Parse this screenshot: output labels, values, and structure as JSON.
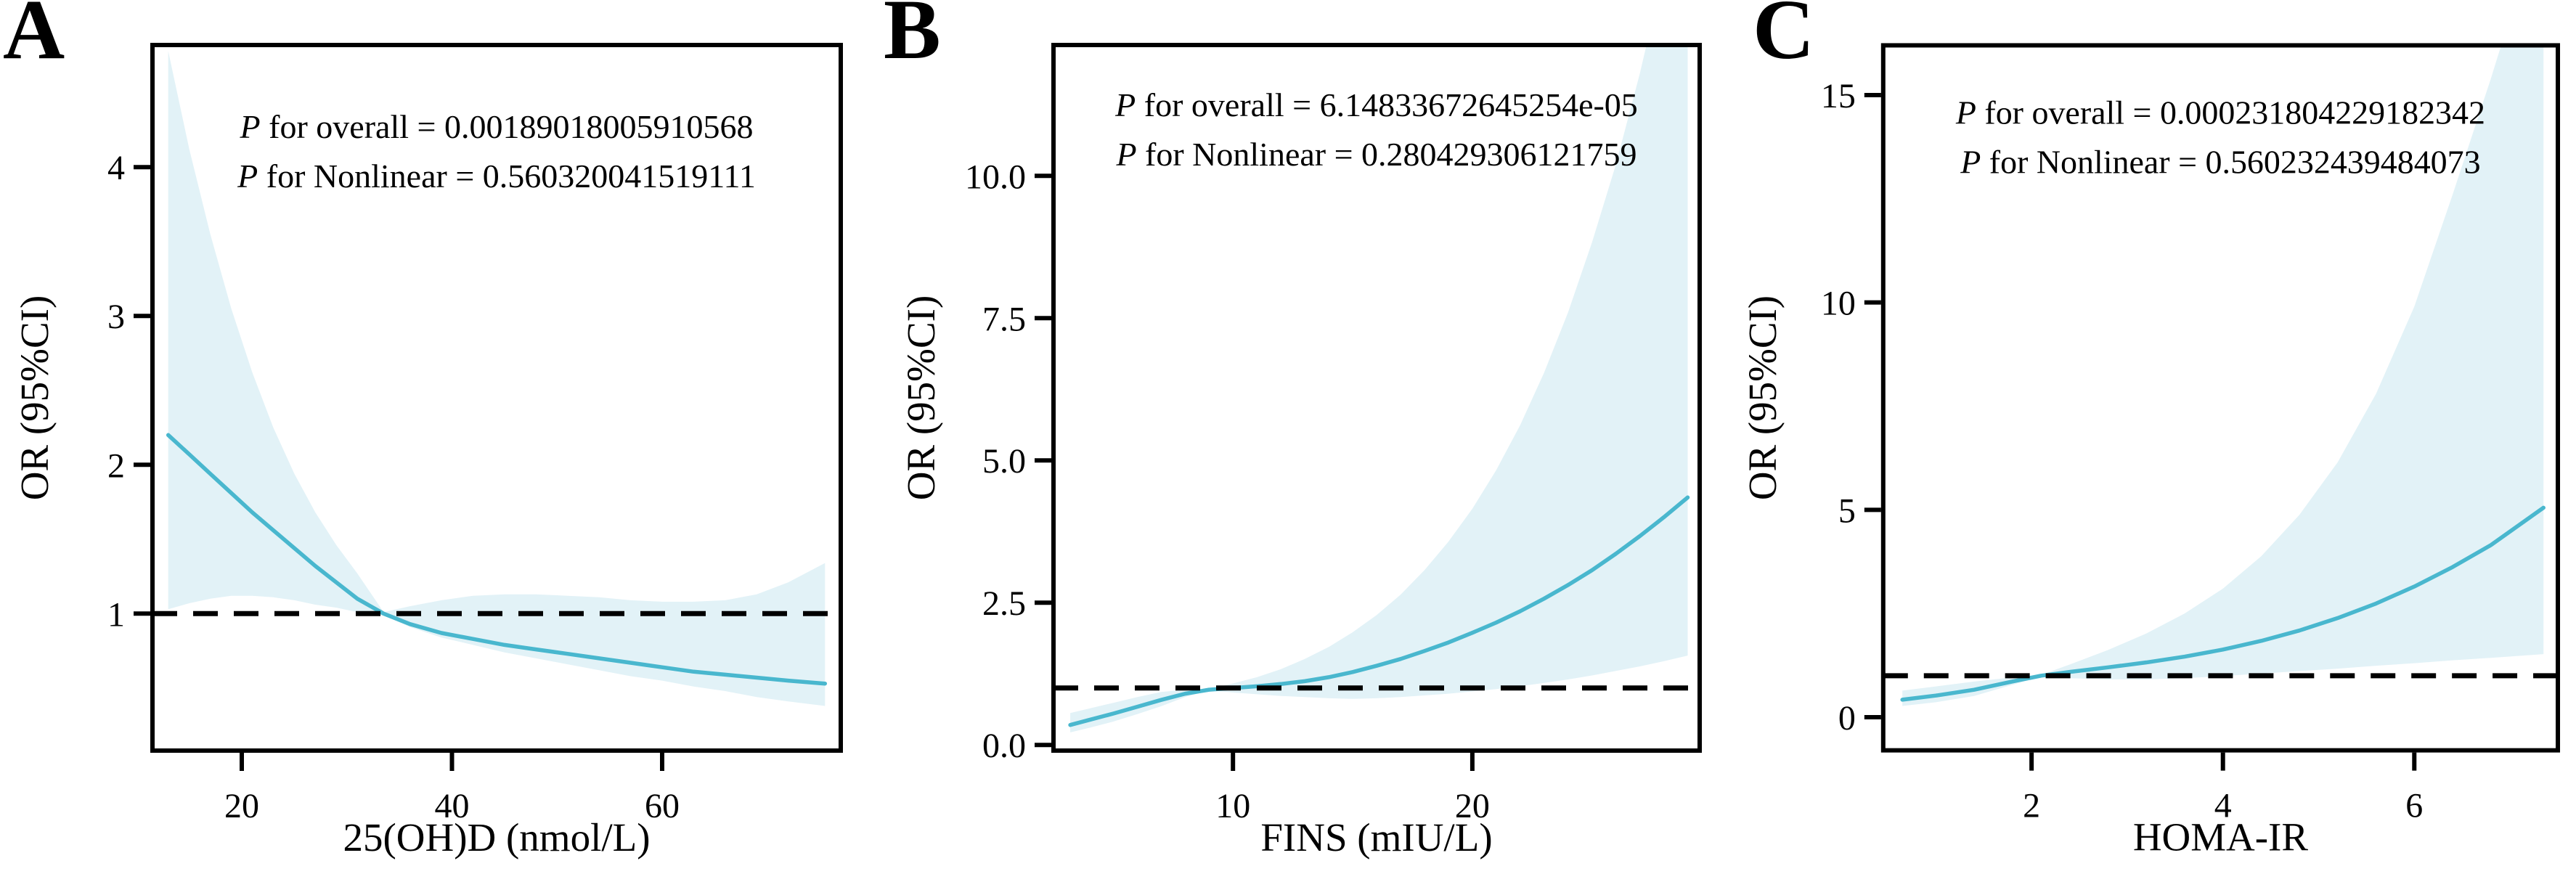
{
  "figure": {
    "background": "#ffffff"
  },
  "colors": {
    "curve": "#49b7ce",
    "band": "#e2f2f7",
    "reference_line": "#000000",
    "frame": "#000000"
  },
  "panels": [
    {
      "letter": "A",
      "p_symbol": "P",
      "p_overall": " for overall = 0.00189018005910568",
      "p_symbol2": "P",
      "p_nonlinear": " for Nonlinear = 0.560320041519111"
    },
    {
      "letter": "B",
      "p_symbol": "P",
      "p_overall": " for overall = 6.14833672645254e-05",
      "p_symbol2": "P",
      "p_nonlinear": " for Nonlinear = 0.280429306121759"
    },
    {
      "letter": "C",
      "p_symbol": "P",
      "p_overall": " for overall = 0.000231804229182342",
      "p_symbol2": "P",
      "p_nonlinear": " for Nonlinear = 0.560232439484073"
    }
  ],
  "chart_data": [
    {
      "type": "line",
      "title": "",
      "xlabel": "25(OH)D (nmol/L)",
      "ylabel": "OR (95%CI)",
      "xlim": [
        11.5,
        77
      ],
      "ylim": [
        0.08,
        4.82
      ],
      "xticks": [
        20,
        40,
        60
      ],
      "xtick_labels": [
        "20",
        "40",
        "60"
      ],
      "yticks": [
        1,
        2,
        3,
        4
      ],
      "ytick_labels": [
        "1",
        "2",
        "3",
        "4"
      ],
      "reference_line_y": 1,
      "grid": false,
      "legend": false,
      "series": {
        "x": [
          13,
          15,
          17,
          19,
          21,
          23,
          25,
          27,
          29,
          31,
          33.5,
          36,
          39,
          42,
          45,
          48,
          51,
          54,
          57,
          60,
          63,
          66,
          69,
          72,
          75.5
        ],
        "or": [
          2.2,
          2.07,
          1.94,
          1.81,
          1.68,
          1.56,
          1.44,
          1.32,
          1.21,
          1.1,
          1.0,
          0.93,
          0.87,
          0.83,
          0.79,
          0.76,
          0.73,
          0.7,
          0.67,
          0.64,
          0.61,
          0.59,
          0.57,
          0.55,
          0.53
        ],
        "lower": [
          1.03,
          1.07,
          1.1,
          1.12,
          1.12,
          1.11,
          1.09,
          1.06,
          1.04,
          1.01,
          0.99,
          0.91,
          0.84,
          0.79,
          0.74,
          0.7,
          0.66,
          0.62,
          0.58,
          0.55,
          0.51,
          0.48,
          0.44,
          0.41,
          0.38
        ],
        "upper": [
          4.78,
          4.12,
          3.55,
          3.05,
          2.62,
          2.25,
          1.94,
          1.68,
          1.46,
          1.27,
          1.01,
          1.05,
          1.09,
          1.12,
          1.13,
          1.13,
          1.12,
          1.11,
          1.09,
          1.08,
          1.08,
          1.09,
          1.13,
          1.21,
          1.34
        ]
      }
    },
    {
      "type": "line",
      "title": "",
      "xlabel": "FINS (mIU/L)",
      "ylabel": "OR (95%CI)",
      "xlim": [
        2.5,
        29.5
      ],
      "ylim": [
        -0.1,
        12.3
      ],
      "xticks": [
        10,
        20
      ],
      "xtick_labels": [
        "10",
        "20"
      ],
      "yticks": [
        0,
        2.5,
        5,
        7.5,
        10
      ],
      "ytick_labels": [
        "0.0",
        "2.5",
        "5.0",
        "7.5",
        "10.0"
      ],
      "reference_line_y": 1,
      "grid": false,
      "legend": false,
      "series": {
        "x": [
          3.2,
          4,
          5,
          6,
          7,
          8,
          9,
          10,
          11,
          12,
          13,
          14,
          15,
          16,
          17,
          18,
          19,
          20,
          21,
          22,
          23,
          24,
          25,
          26,
          27,
          28,
          29
        ],
        "or": [
          0.35,
          0.44,
          0.55,
          0.67,
          0.79,
          0.9,
          0.97,
          1.0,
          1.03,
          1.07,
          1.12,
          1.19,
          1.28,
          1.39,
          1.51,
          1.65,
          1.8,
          1.97,
          2.15,
          2.35,
          2.57,
          2.81,
          3.07,
          3.36,
          3.67,
          4.0,
          4.35
        ],
        "lower": [
          0.22,
          0.3,
          0.41,
          0.54,
          0.68,
          0.84,
          0.96,
          0.92,
          0.89,
          0.86,
          0.84,
          0.82,
          0.81,
          0.82,
          0.84,
          0.87,
          0.9,
          0.94,
          0.98,
          1.03,
          1.09,
          1.15,
          1.22,
          1.3,
          1.38,
          1.47,
          1.57
        ],
        "upper": [
          0.56,
          0.64,
          0.74,
          0.84,
          0.93,
          0.97,
          0.98,
          1.08,
          1.19,
          1.33,
          1.51,
          1.72,
          1.98,
          2.28,
          2.64,
          3.07,
          3.57,
          4.15,
          4.83,
          5.62,
          6.54,
          7.6,
          8.83,
          10.2,
          11.8,
          13.6,
          15.6
        ]
      }
    },
    {
      "type": "line",
      "title": "",
      "xlabel": "HOMA-IR",
      "ylabel": "OR (95%CI)",
      "xlim": [
        0.45,
        7.5
      ],
      "ylim": [
        -0.8,
        16.2
      ],
      "xticks": [
        2,
        4,
        6
      ],
      "xtick_labels": [
        "2",
        "4",
        "6"
      ],
      "yticks": [
        0,
        5,
        10,
        15
      ],
      "ytick_labels": [
        "0",
        "5",
        "10",
        "15"
      ],
      "reference_line_y": 1,
      "grid": false,
      "legend": false,
      "series": {
        "x": [
          0.65,
          1.0,
          1.4,
          1.8,
          2.1,
          2.4,
          2.8,
          3.2,
          3.6,
          4.0,
          4.4,
          4.8,
          5.2,
          5.6,
          6.0,
          6.4,
          6.8,
          7.35
        ],
        "or": [
          0.42,
          0.52,
          0.66,
          0.86,
          1.0,
          1.09,
          1.2,
          1.32,
          1.46,
          1.63,
          1.84,
          2.09,
          2.39,
          2.74,
          3.15,
          3.62,
          4.15,
          5.05
        ],
        "lower": [
          0.27,
          0.36,
          0.51,
          0.78,
          0.98,
          0.94,
          0.91,
          0.91,
          0.94,
          0.99,
          1.05,
          1.11,
          1.17,
          1.24,
          1.3,
          1.37,
          1.43,
          1.52
        ],
        "upper": [
          0.64,
          0.74,
          0.86,
          0.96,
          1.02,
          1.27,
          1.62,
          2.02,
          2.5,
          3.1,
          3.88,
          4.88,
          6.15,
          7.8,
          9.9,
          12.6,
          15.4,
          19.5
        ]
      }
    }
  ]
}
